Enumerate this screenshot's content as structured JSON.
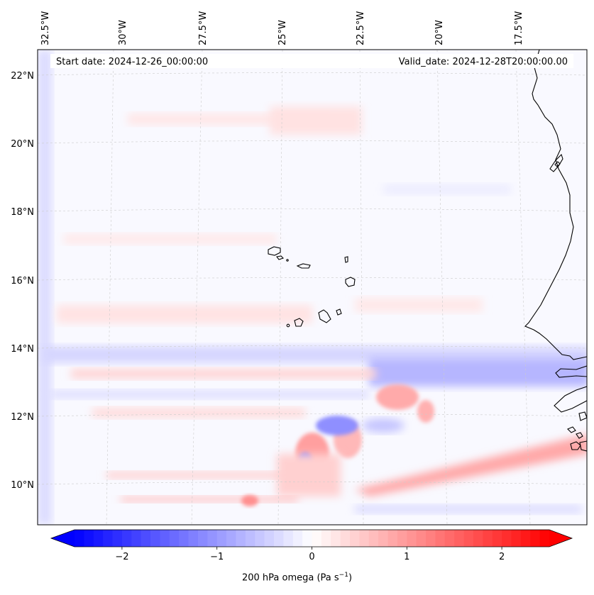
{
  "map": {
    "header": {
      "start_date": "Start date: 2024-12-26_00:00:00",
      "valid_date": "Valid_date: 2024-12-28T20:00:00.00"
    },
    "lon_ticks": [
      "32.5°W",
      "30°W",
      "27.5°W",
      "25°W",
      "22.5°W",
      "20°W",
      "17.5°W"
    ],
    "lat_ticks": [
      "22°N",
      "20°N",
      "18°N",
      "16°N",
      "14°N",
      "12°N",
      "10°N"
    ],
    "lat_range": [
      9.0,
      22.8
    ],
    "lon_range": [
      -33.3,
      -15.9
    ],
    "features": [
      "Cape Verde islands",
      "West African coastline"
    ]
  },
  "colorbar": {
    "ticks": [
      "−2",
      "−1",
      "0",
      "1",
      "2"
    ],
    "tick_values": [
      -2,
      -1,
      0,
      1,
      2
    ],
    "range": [
      -2.5,
      2.5
    ],
    "title": "200 hPa omega (Pa s",
    "title_sup": "−1",
    "title_end": ")",
    "cmap": "bwr",
    "low_color": "#0000ff",
    "mid_color": "#ffffff",
    "high_color": "#ff0000"
  },
  "chart_data": {
    "type": "heatmap",
    "title": "",
    "variable": "200 hPa omega (Pa s−1)",
    "start_date": "2024-12-26_00:00:00",
    "valid_date": "2024-12-28T20:00:00.00",
    "colorbar_range": [
      -2.5,
      2.5
    ],
    "x_ticks": [
      "32.5°W",
      "30°W",
      "27.5°W",
      "25°W",
      "22.5°W",
      "20°W",
      "17.5°W"
    ],
    "y_ticks": [
      "22°N",
      "20°N",
      "18°N",
      "16°N",
      "14°N",
      "12°N",
      "10°N"
    ],
    "regions": [
      {
        "name": "northern domain",
        "lat": [
          14,
          22.8
        ],
        "value": 0.1
      },
      {
        "name": "negative band near 13.5°N",
        "lat": [
          13,
          14
        ],
        "value": -0.8
      },
      {
        "name": "mixed convective area",
        "lat": [
          10,
          13
        ],
        "value_min": -1.4,
        "value_max": 1.8
      },
      {
        "name": "positive band near 10.5°N",
        "lat": [
          10,
          11
        ],
        "value": 1.2
      }
    ]
  }
}
